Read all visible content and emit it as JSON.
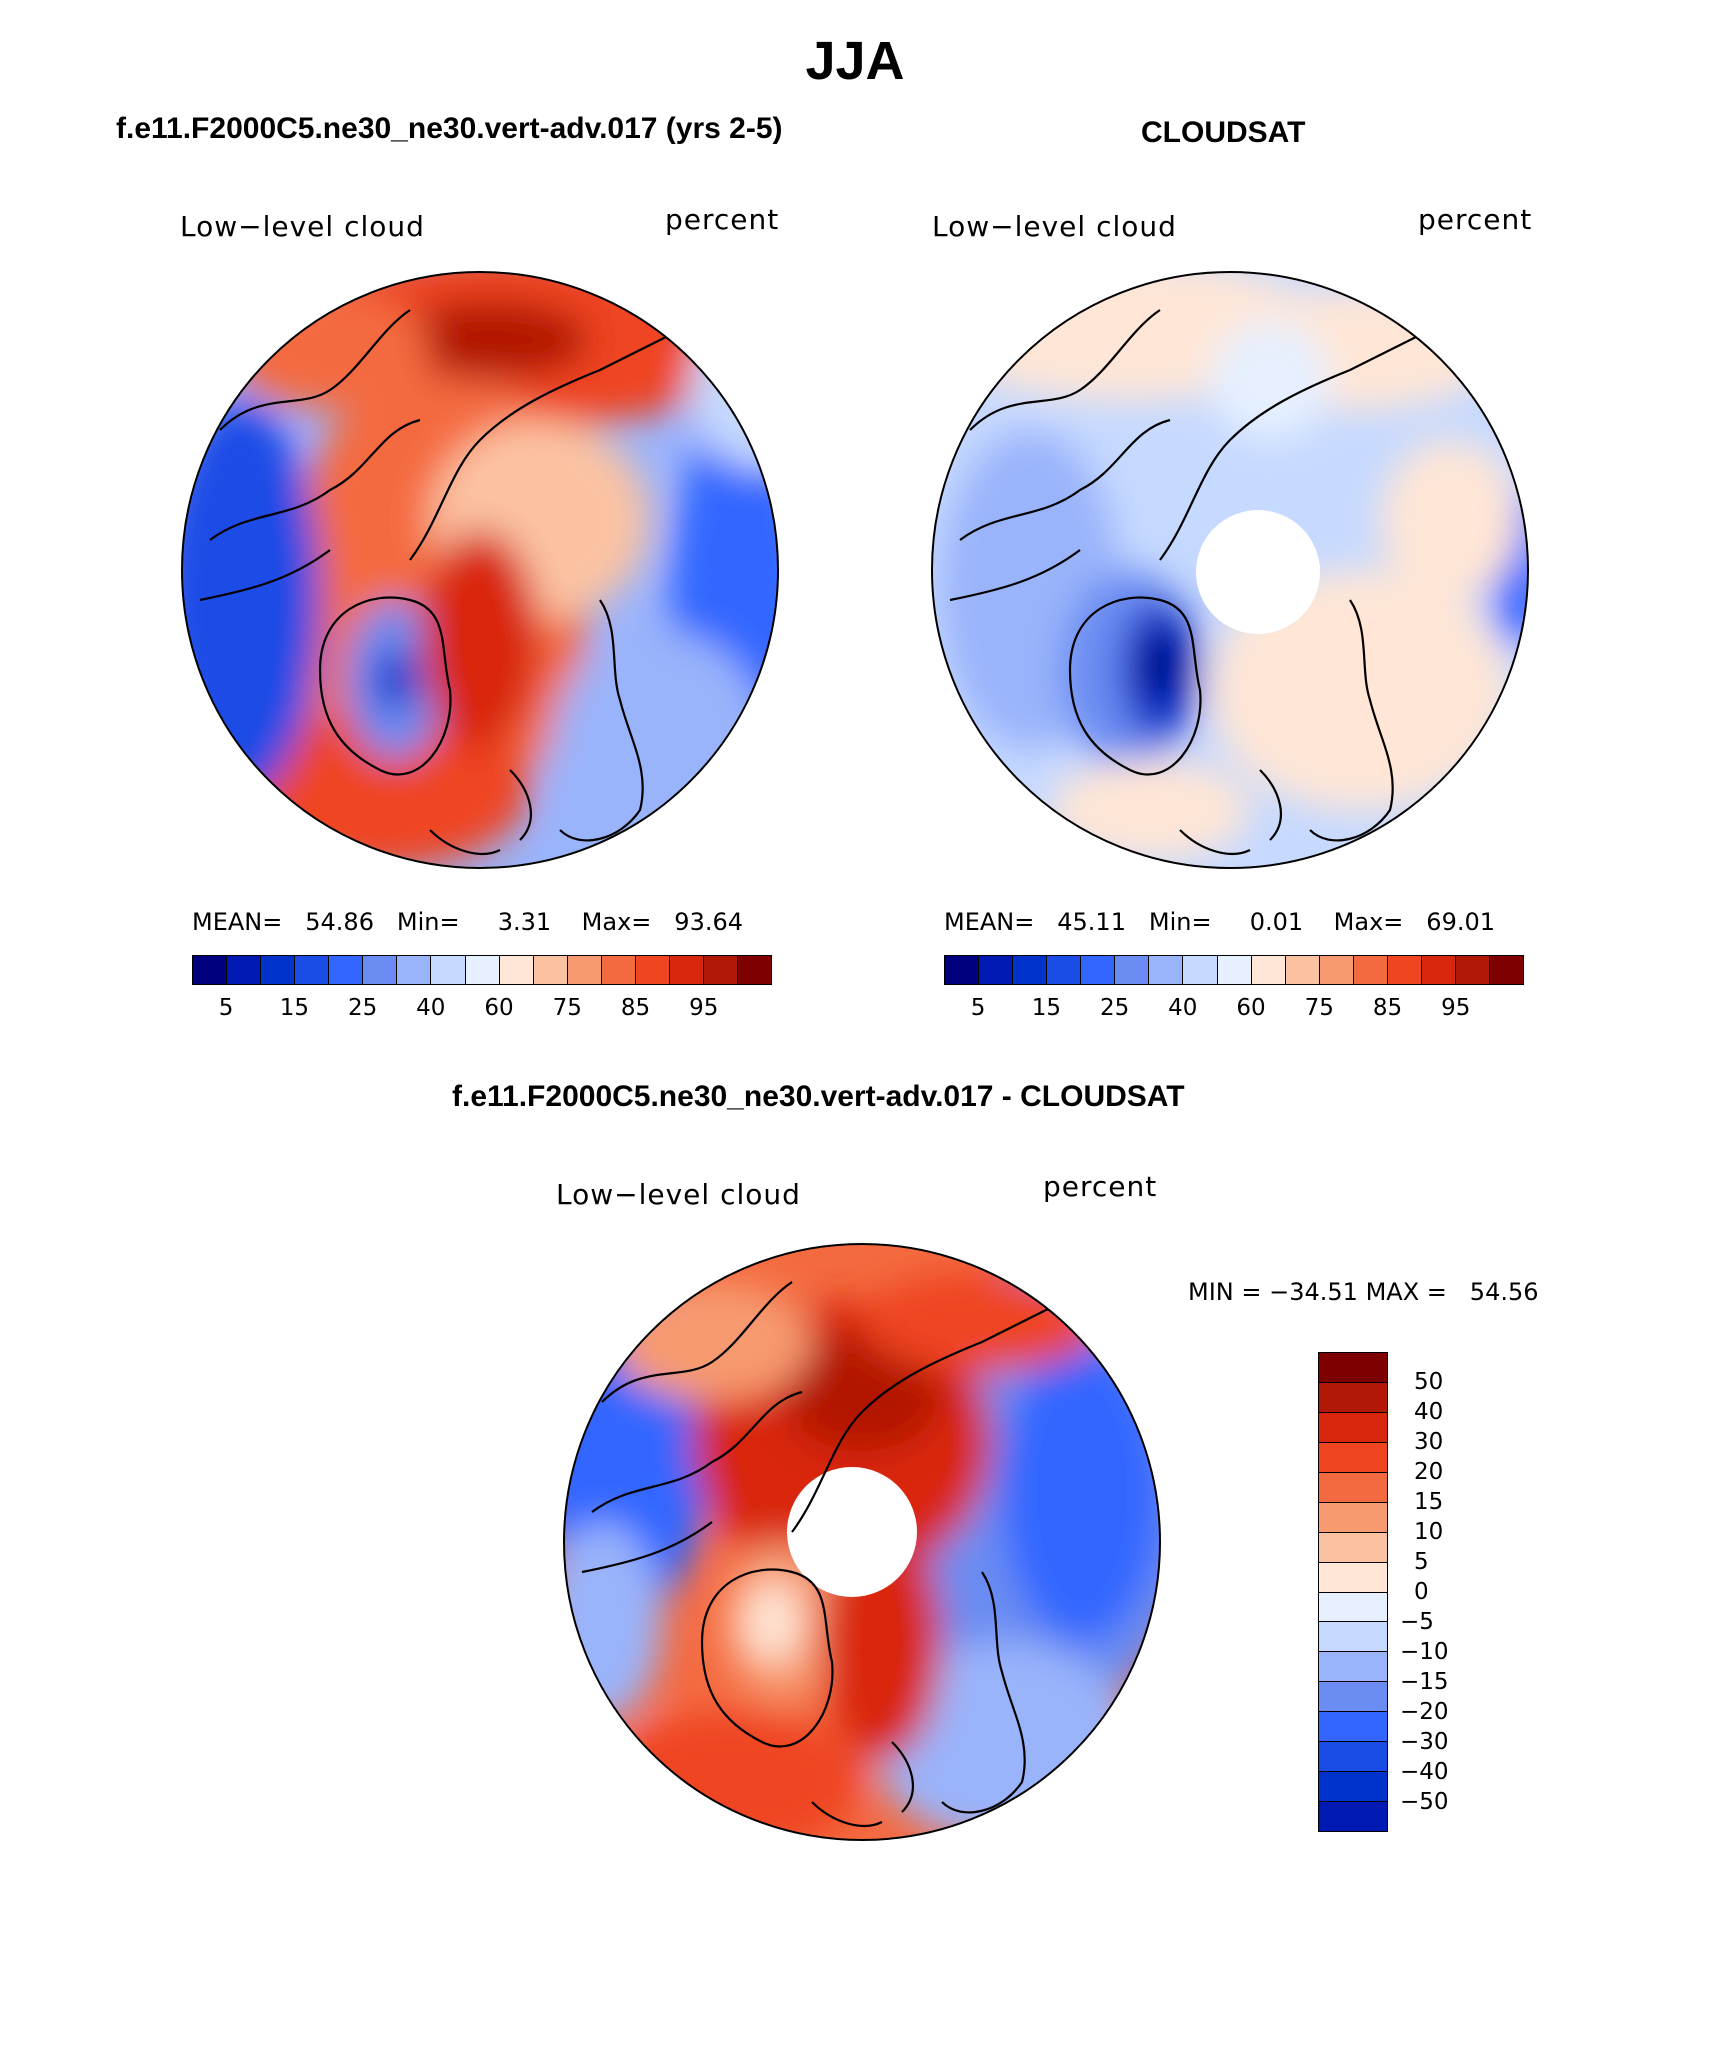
{
  "figure": {
    "title": "JJA"
  },
  "panels": [
    {
      "heading": "f.e11.F2000C5.ne30_ne30.vert-adv.017 (yrs 2-5)",
      "left_label": "Low−level cloud",
      "right_label": "percent",
      "stats": {
        "mean_label": "MEAN=",
        "mean": "54.86",
        "min_label": "Min=",
        "min": "3.31",
        "max_label": "Max=",
        "max": "93.64"
      }
    },
    {
      "heading": "CLOUDSAT",
      "left_label": "Low−level cloud",
      "right_label": "percent",
      "stats": {
        "mean_label": "MEAN=",
        "mean": "45.11",
        "min_label": "Min=",
        "min": "0.01",
        "max_label": "Max=",
        "max": "69.01"
      }
    },
    {
      "heading": "f.e11.F2000C5.ne30_ne30.vert-adv.017 - CLOUDSAT",
      "left_label": "Low−level cloud",
      "right_label": "percent",
      "stats": {
        "min_label": "MIN =",
        "min": "−34.51",
        "max_label": "MAX =",
        "max": "54.56"
      }
    }
  ],
  "colorbar_abs": {
    "ticks": [
      "5",
      "15",
      "25",
      "40",
      "60",
      "75",
      "85",
      "95"
    ],
    "colors": [
      "#00007f",
      "#0019b2",
      "#0033cc",
      "#1a4ce6",
      "#3366ff",
      "#6b8cf2",
      "#9ab4fb",
      "#c6d9ff",
      "#e6f0ff",
      "#ffe6d6",
      "#fbc2a2",
      "#f79a70",
      "#f46a40",
      "#ef4520",
      "#d9260f",
      "#b21806",
      "#7f0000"
    ]
  },
  "colorbar_diff": {
    "ticks": [
      "50",
      "40",
      "30",
      "20",
      "15",
      "10",
      "5",
      "0",
      "−5",
      "−10",
      "−15",
      "−20",
      "−30",
      "−40",
      "−50"
    ],
    "colors": [
      "#7f0000",
      "#b21806",
      "#d9260f",
      "#ef4520",
      "#f46a40",
      "#f79a70",
      "#fbc2a2",
      "#ffe6d6",
      "#e6f0ff",
      "#c6d9ff",
      "#9ab4fb",
      "#6b8cf2",
      "#3366ff",
      "#1a4ce6",
      "#0033cc",
      "#0019b2"
    ]
  },
  "colors": {
    "land_outline": "#000000",
    "missing": "#ffffff"
  }
}
